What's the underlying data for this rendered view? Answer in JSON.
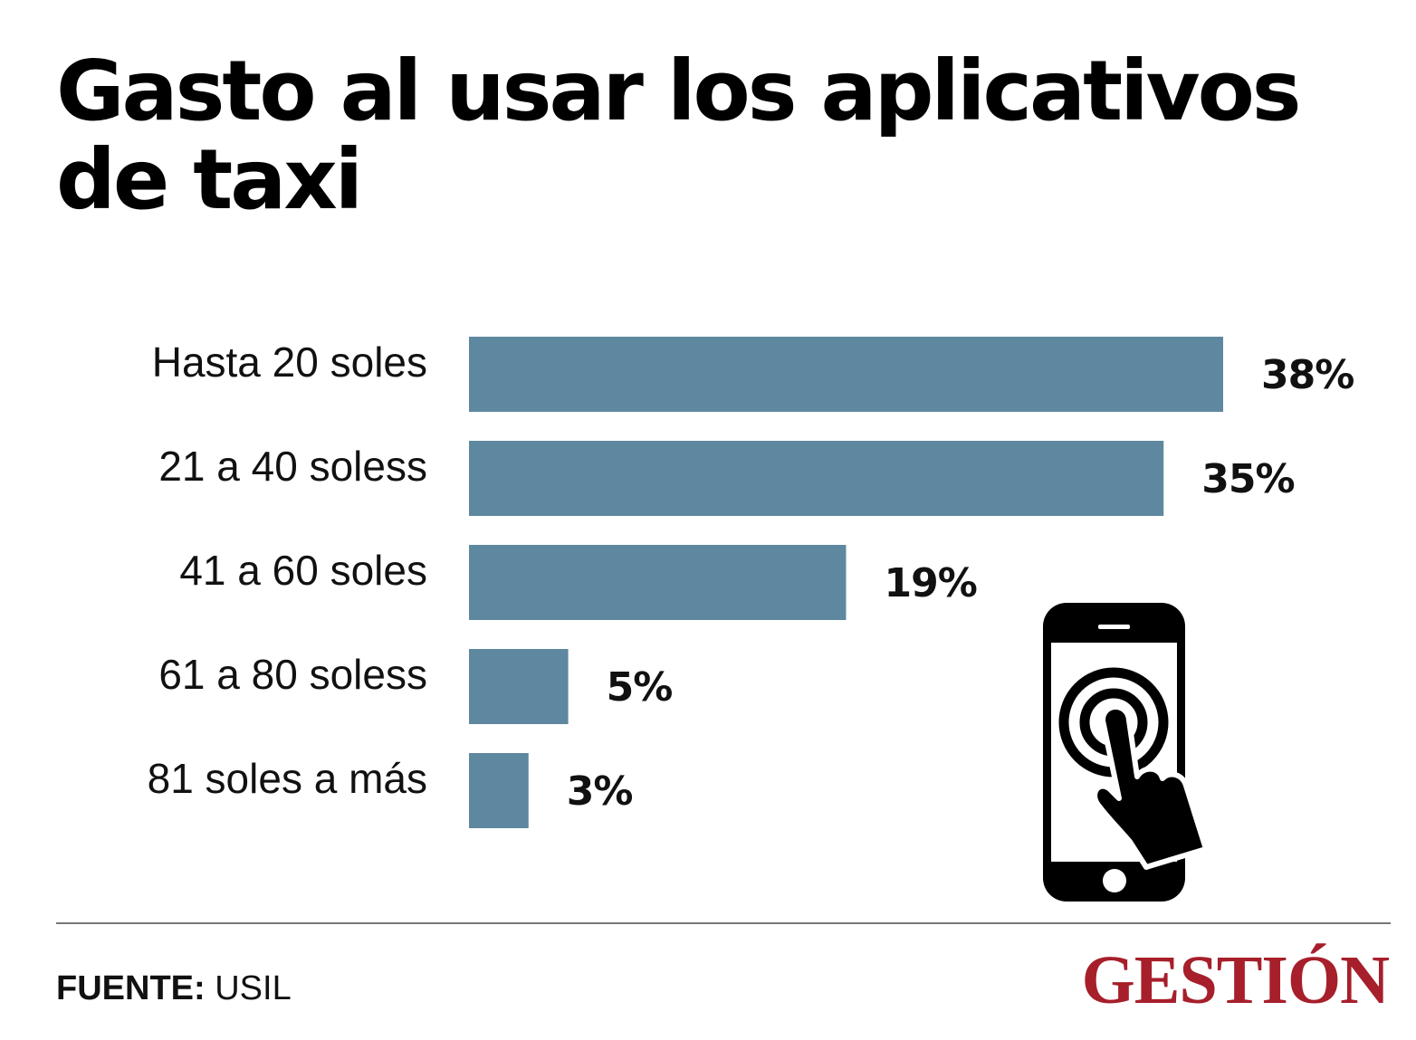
{
  "colors": {
    "bar": "#5e889f",
    "text": "#111111",
    "brand": "#a61f2b"
  },
  "chart_data": {
    "type": "bar",
    "orientation": "horizontal",
    "title_lines": [
      "Gasto al usar los aplicativos",
      "de taxi"
    ],
    "categories": [
      "Hasta 20 soles",
      "21 a 40 soless",
      "41 a 60 soles",
      "61 a 80 soless",
      "81 soles a más"
    ],
    "values": [
      38,
      35,
      19,
      5,
      3
    ],
    "value_labels": [
      "38%",
      "35%",
      "19%",
      "5%",
      "3%"
    ],
    "unit": "%",
    "xlim": [
      0,
      38
    ],
    "grid": false,
    "legend": "none"
  },
  "source": {
    "label": "FUENTE:",
    "value": "USIL"
  },
  "brand": {
    "logo_text": "GESTIÓN"
  },
  "illustration": {
    "icon": "smartphone-touch-icon"
  }
}
